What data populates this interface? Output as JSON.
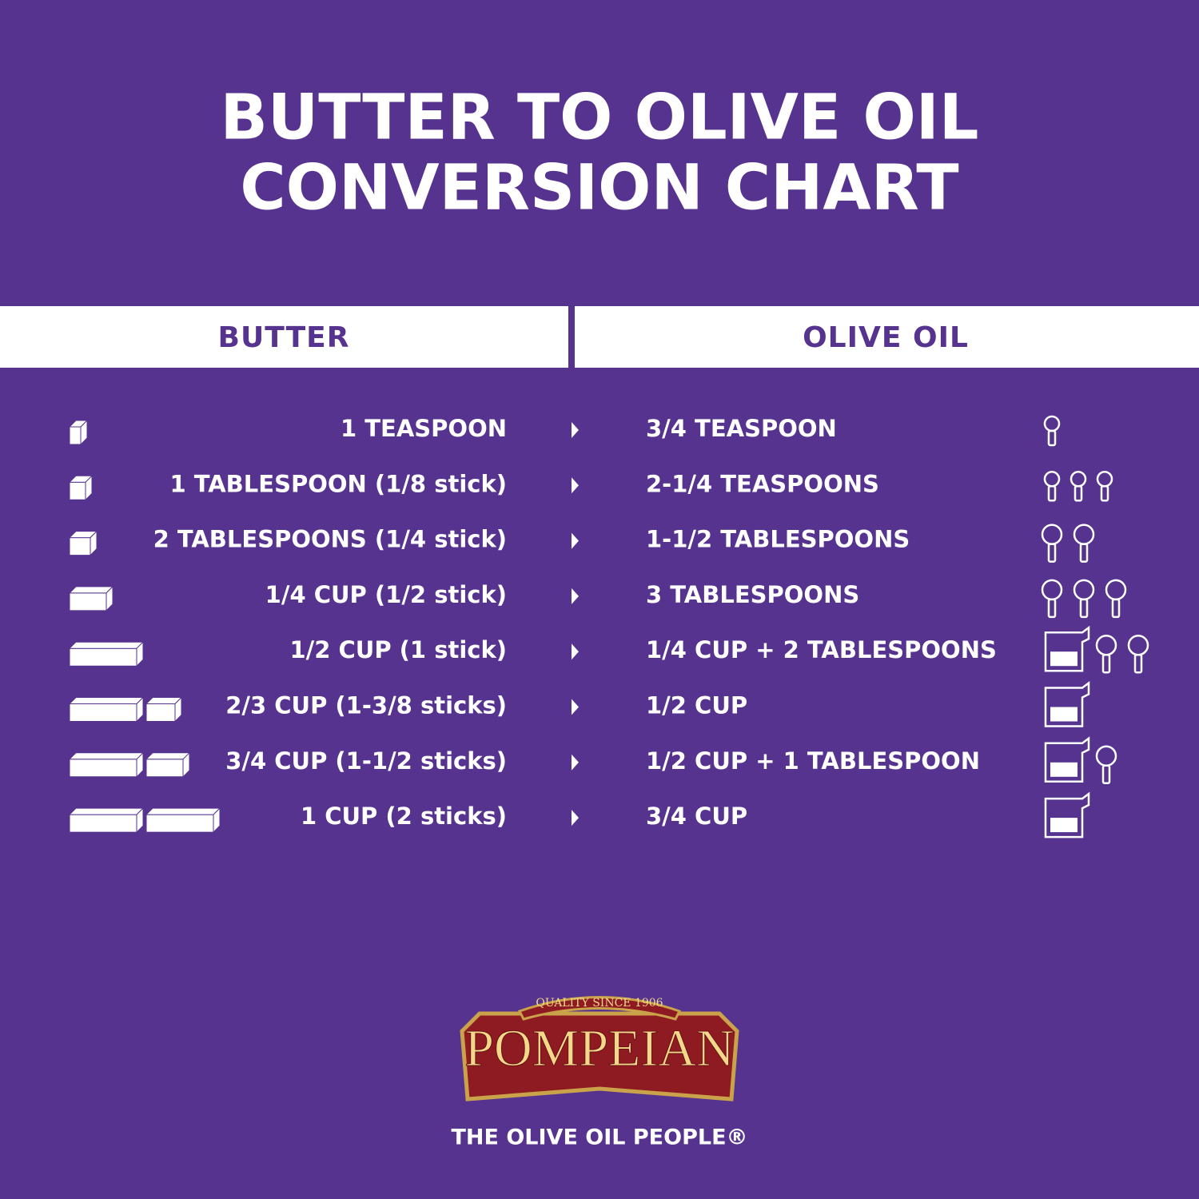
{
  "header": {
    "title_lines": [
      "BUTTER TO OLIVE OIL",
      "CONVERSION CHART"
    ]
  },
  "table": {
    "columns": [
      "BUTTER",
      "OLIVE OIL"
    ],
    "rows": [
      [
        "1 TEASPOON",
        "3/4 TEASPOON"
      ],
      [
        "1 TABLESPOON (1/8 stick)",
        "2-1/4 TEASPOONS"
      ],
      [
        "2 TABLESPOONS (1/4 stick)",
        "1-1/2 TABLESPOONS"
      ],
      [
        "1/4 CUP (1/2 stick)",
        "3 TABLESPOONS"
      ],
      [
        "1/2 CUP (1 stick)",
        "1/4 CUP + 2 TABLESPOONS"
      ],
      [
        "2/3 CUP (1-3/8 sticks)",
        "1/2 CUP"
      ],
      [
        "3/4 CUP (1-1/2 sticks)",
        "1/2 CUP + 1 TABLESPOON"
      ],
      [
        "1 CUP (2 sticks)",
        "3/4 CUP"
      ]
    ]
  },
  "logo": {
    "badge": "QUALITY SINCE 1906",
    "brand": "POMPEIAN",
    "tagline": "THE OLIVE OIL PEOPLE®"
  }
}
